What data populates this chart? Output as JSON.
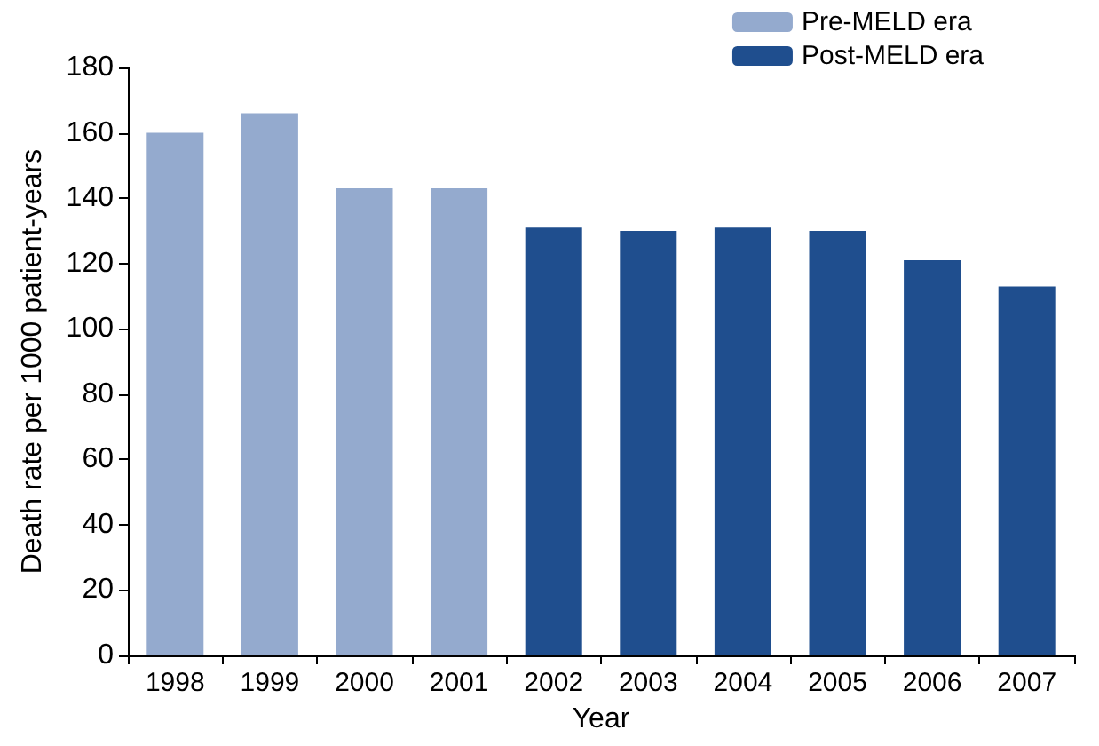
{
  "chart_data": {
    "type": "bar",
    "xlabel": "Year",
    "ylabel": "Death rate per 1000 patient-years",
    "categories": [
      "1998",
      "1999",
      "2000",
      "2001",
      "2002",
      "2003",
      "2004",
      "2005",
      "2006",
      "2007"
    ],
    "series": [
      {
        "name": "Pre-MELD era",
        "color": "#94aace",
        "values": [
          160,
          166,
          143,
          143,
          null,
          null,
          null,
          null,
          null,
          null
        ]
      },
      {
        "name": "Post-MELD era",
        "color": "#1f4e8e",
        "values": [
          null,
          null,
          null,
          null,
          131,
          130,
          131,
          130,
          121,
          113
        ]
      }
    ],
    "ylim": [
      0,
      180
    ],
    "yticks": [
      0,
      20,
      40,
      60,
      80,
      100,
      120,
      140,
      160,
      180
    ],
    "grid": false,
    "legend": "top right"
  }
}
